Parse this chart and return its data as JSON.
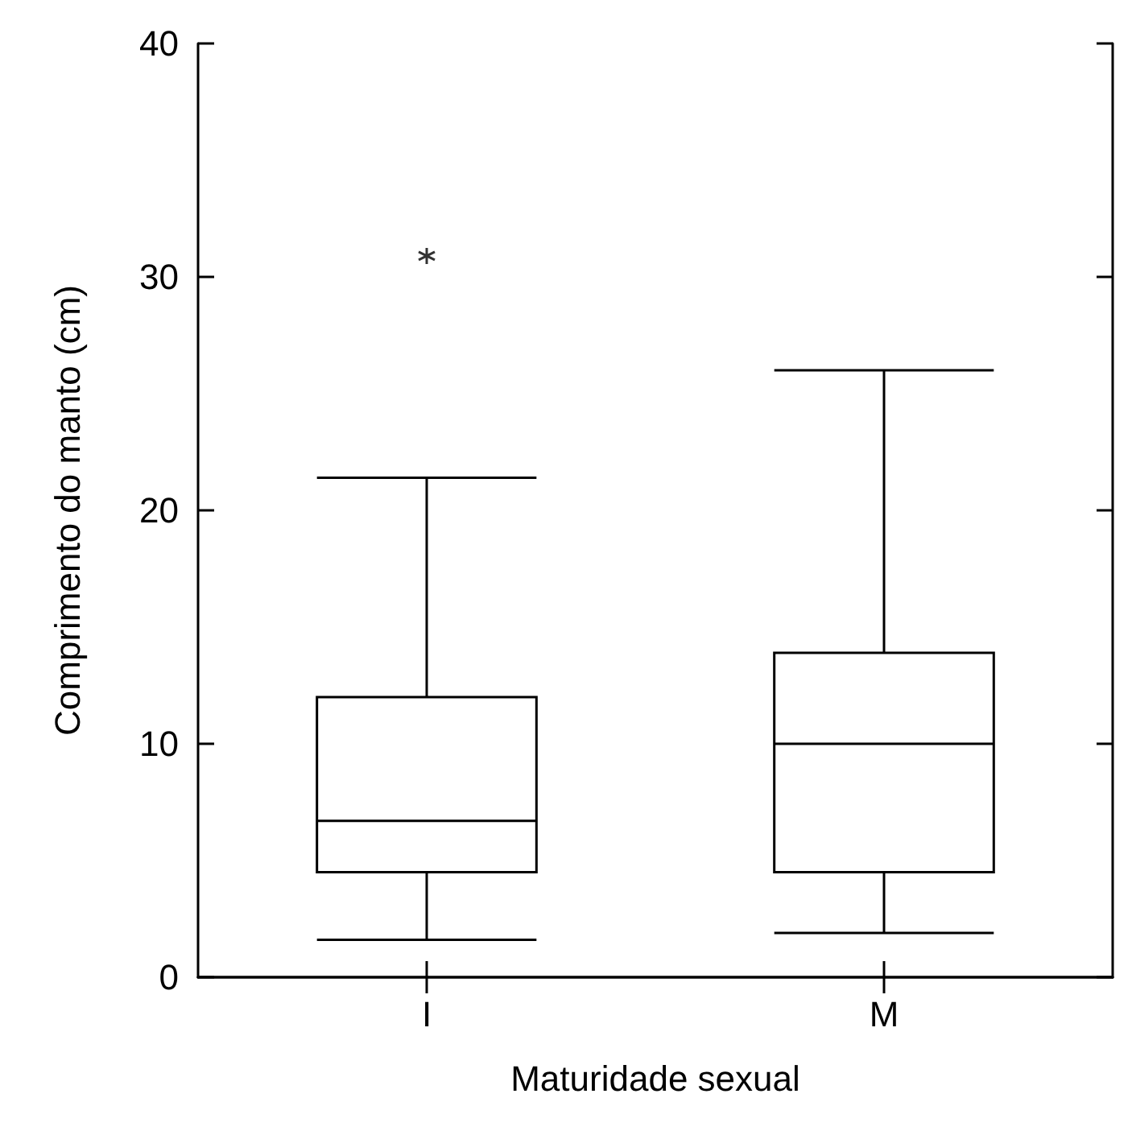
{
  "chart_data": {
    "type": "box",
    "categories": [
      "I",
      "M"
    ],
    "xlabel": "Maturidade sexual",
    "ylabel": "Comprimento do manto (cm)",
    "color": "#000000",
    "boxes": [
      {
        "low": 1.6,
        "q1": 4.5,
        "median": 6.7,
        "q3": 12.0,
        "high": 21.4,
        "outliers": [
          30.9
        ]
      },
      {
        "low": 1.9,
        "q1": 4.5,
        "median": 10.0,
        "q3": 13.9,
        "high": 26.0
      }
    ],
    "ylim": [
      0,
      40
    ],
    "yticks": [
      0,
      10,
      20,
      30,
      40
    ],
    "grid": false,
    "marker": "star"
  }
}
